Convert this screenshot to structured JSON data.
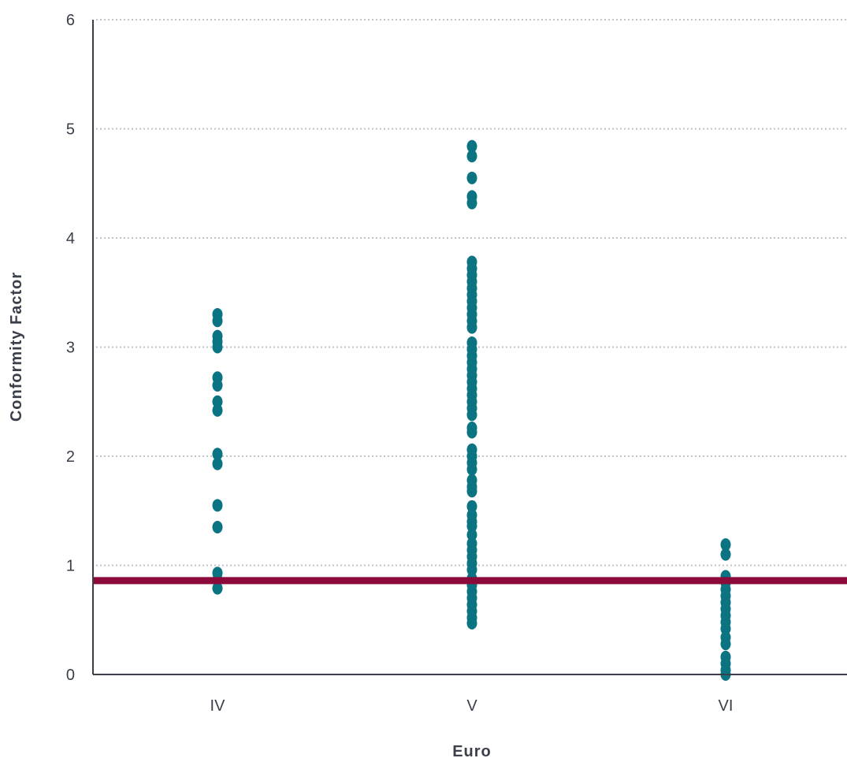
{
  "chart_data": {
    "type": "scatter",
    "title": "",
    "xlabel": "Euro",
    "ylabel": "Conformity Factor",
    "categories": [
      "IV",
      "V",
      "VI"
    ],
    "ylim": [
      0,
      6
    ],
    "yticks": [
      0,
      1,
      2,
      3,
      4,
      5,
      6
    ],
    "grid": true,
    "grid_style": "dotted horizontal",
    "legend": "none",
    "reference_line": {
      "y": 0.86,
      "color": "#8b0a3a"
    },
    "point_color": "#0b7482",
    "series": [
      {
        "category": "IV",
        "values": [
          3.3,
          3.24,
          3.1,
          3.05,
          3.0,
          2.72,
          2.65,
          2.5,
          2.42,
          2.02,
          1.93,
          1.55,
          1.35,
          0.93,
          0.87,
          0.79
        ]
      },
      {
        "category": "V",
        "values": [
          4.84,
          4.75,
          4.55,
          4.38,
          4.32,
          3.78,
          3.72,
          3.66,
          3.6,
          3.54,
          3.48,
          3.42,
          3.36,
          3.3,
          3.24,
          3.18,
          3.04,
          2.98,
          2.92,
          2.86,
          2.8,
          2.74,
          2.68,
          2.62,
          2.56,
          2.5,
          2.44,
          2.38,
          2.26,
          2.22,
          2.06,
          2.0,
          1.94,
          1.88,
          1.78,
          1.72,
          1.68,
          1.54,
          1.46,
          1.4,
          1.36,
          1.28,
          1.2,
          1.14,
          1.08,
          1.02,
          0.96,
          0.88,
          0.82,
          0.76,
          0.7,
          0.64,
          0.58,
          0.52,
          0.47
        ]
      },
      {
        "category": "VI",
        "values": [
          1.19,
          1.1,
          0.9,
          0.84,
          0.78,
          0.72,
          0.66,
          0.6,
          0.54,
          0.48,
          0.42,
          0.34,
          0.28,
          0.16,
          0.1,
          0.04,
          0.0
        ]
      }
    ]
  }
}
